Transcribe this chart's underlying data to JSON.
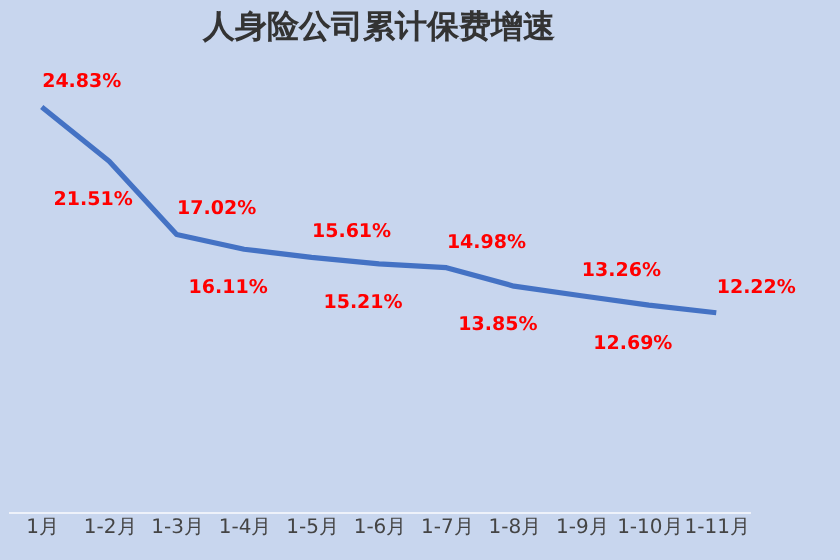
{
  "chart_data": {
    "type": "line",
    "title": "人身险公司累计保费增速",
    "categories": [
      "1月",
      "1-2月",
      "1-3月",
      "1-4月",
      "1-5月",
      "1-6月",
      "1-7月",
      "1-8月",
      "1-9月",
      "1-10月",
      "1-11月"
    ],
    "series": [
      {
        "color": "#4472c4",
        "values": [
          24.83,
          21.51,
          17.02,
          16.11,
          15.61,
          15.21,
          14.98,
          13.85,
          13.26,
          12.69,
          12.22
        ],
        "value_labels": [
          "24.83%",
          "21.51%",
          "17.02%",
          "16.11%",
          "15.61%",
          "15.21%",
          "14.98%",
          "13.85%",
          "13.26%",
          "12.69%",
          "12.22%"
        ]
      }
    ],
    "grid": false,
    "marker": "none",
    "line_style": "solid"
  }
}
